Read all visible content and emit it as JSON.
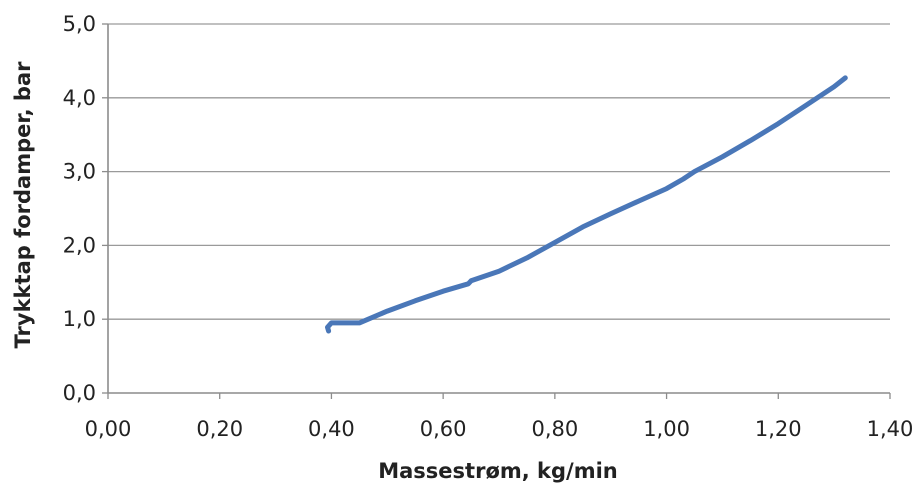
{
  "chart_data": {
    "type": "line",
    "title": "",
    "xlabel": "Massestrøm, kg/min",
    "ylabel": "Trykktap fordamper, bar",
    "xlim": [
      0.0,
      1.4
    ],
    "ylim": [
      0.0,
      5.0
    ],
    "xticks": [
      "0,00",
      "0,20",
      "0,40",
      "0,60",
      "0,80",
      "1,00",
      "1,20",
      "1,40"
    ],
    "yticks": [
      "0,0",
      "1,0",
      "2,0",
      "3,0",
      "4,0",
      "5,0"
    ],
    "grid": "horizontal",
    "legend": "none",
    "series": [
      {
        "color": "#4a77b8",
        "points": [
          [
            0.395,
            0.84
          ],
          [
            0.393,
            0.89
          ],
          [
            0.4,
            0.95
          ],
          [
            0.45,
            0.95
          ],
          [
            0.5,
            1.11
          ],
          [
            0.55,
            1.25
          ],
          [
            0.6,
            1.38
          ],
          [
            0.645,
            1.48
          ],
          [
            0.65,
            1.52
          ],
          [
            0.7,
            1.65
          ],
          [
            0.75,
            1.83
          ],
          [
            0.8,
            2.04
          ],
          [
            0.85,
            2.25
          ],
          [
            0.9,
            2.43
          ],
          [
            0.95,
            2.6
          ],
          [
            1.0,
            2.77
          ],
          [
            1.03,
            2.9
          ],
          [
            1.05,
            3.0
          ],
          [
            1.1,
            3.2
          ],
          [
            1.15,
            3.42
          ],
          [
            1.2,
            3.65
          ],
          [
            1.25,
            3.9
          ],
          [
            1.3,
            4.15
          ],
          [
            1.32,
            4.27
          ]
        ]
      }
    ]
  }
}
